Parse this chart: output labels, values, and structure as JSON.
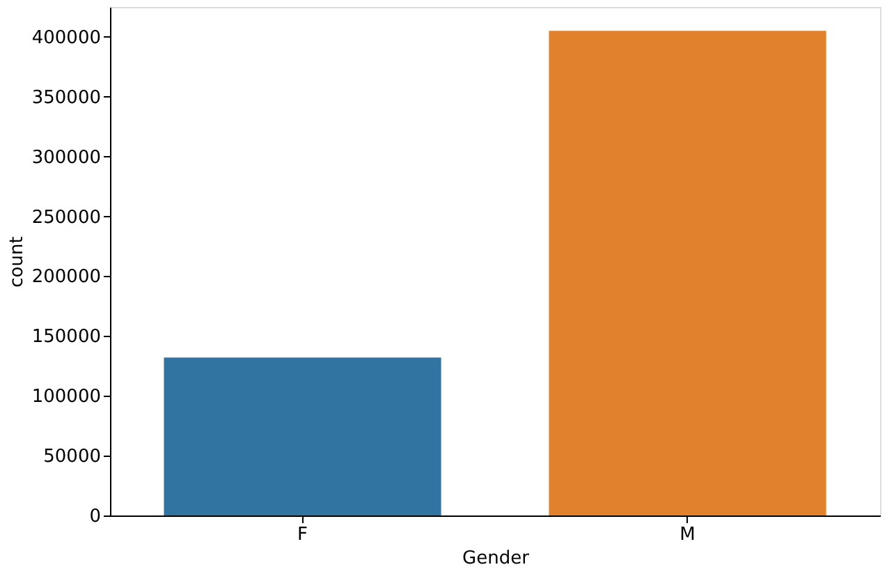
{
  "chart_data": {
    "type": "bar",
    "xlabel": "Gender",
    "ylabel": "count",
    "categories": [
      "F",
      "M"
    ],
    "values": [
      132000,
      405000
    ],
    "colors": [
      "#3274a1",
      "#e1812c"
    ],
    "ylim": [
      0,
      425000
    ],
    "yticks": [
      0,
      50000,
      100000,
      150000,
      200000,
      250000,
      300000,
      350000,
      400000
    ],
    "grid": false
  }
}
